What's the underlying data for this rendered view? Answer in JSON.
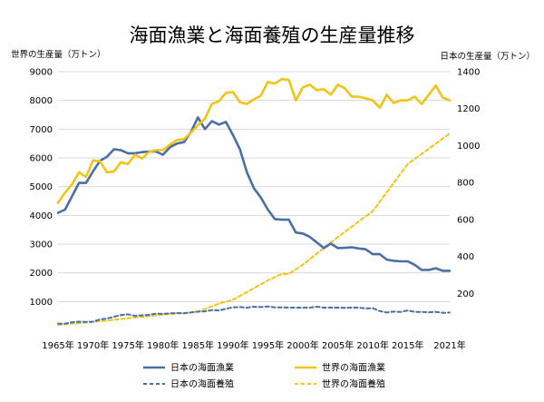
{
  "chart_data": {
    "type": "line",
    "title": "海面漁業と海面養殖の生産量推移",
    "left_axis": {
      "label": "世界の生産量（万トン）",
      "min": 0,
      "max": 9000,
      "ticks": [
        1000,
        2000,
        3000,
        4000,
        5000,
        6000,
        7000,
        8000,
        9000
      ]
    },
    "right_axis": {
      "label": "日本の生産量（万トン）",
      "min": 0,
      "max": 1400,
      "ticks": [
        200,
        400,
        600,
        800,
        1000,
        1200,
        1400
      ]
    },
    "x_axis": {
      "min": 1965,
      "max": 2021
    },
    "x_tick_labels": [
      {
        "year": 1965,
        "label": "1965年"
      },
      {
        "year": 1970,
        "label": "1970年"
      },
      {
        "year": 1975,
        "label": "1975年"
      },
      {
        "year": 1980,
        "label": "1980年"
      },
      {
        "year": 1985,
        "label": "1985年"
      },
      {
        "year": 1990,
        "label": "1990年"
      },
      {
        "year": 1995,
        "label": "1995年"
      },
      {
        "year": 2000,
        "label": "2000年"
      },
      {
        "year": 2005,
        "label": "2005年"
      },
      {
        "year": 2010,
        "label": "2010年"
      },
      {
        "year": 2015,
        "label": "2015年"
      },
      {
        "year": 2021,
        "label": "2021年"
      }
    ],
    "grid": true,
    "legend_position": "bottom",
    "series": [
      {
        "name": "日本の海面漁業",
        "axis": "left",
        "color": "#4a6fa5",
        "style": "solid",
        "x": [
          1965,
          1966,
          1967,
          1968,
          1969,
          1970,
          1971,
          1972,
          1973,
          1974,
          1975,
          1976,
          1977,
          1978,
          1979,
          1980,
          1981,
          1982,
          1983,
          1984,
          1985,
          1986,
          1987,
          1988,
          1989,
          1990,
          1991,
          1992,
          1993,
          1994,
          1995,
          1996,
          1997,
          1998,
          1999,
          2000,
          2001,
          2002,
          2003,
          2004,
          2005,
          2006,
          2007,
          2008,
          2009,
          2010,
          2011,
          2012,
          2013,
          2014,
          2015,
          2016,
          2017,
          2018,
          2019,
          2020,
          2021
        ],
        "y": [
          4090,
          4200,
          4660,
          5130,
          5130,
          5530,
          5900,
          6040,
          6300,
          6270,
          6160,
          6160,
          6200,
          6220,
          6220,
          6110,
          6370,
          6500,
          6550,
          6900,
          7410,
          7000,
          7280,
          7160,
          7250,
          6800,
          6300,
          5500,
          4950,
          4620,
          4200,
          3870,
          3850,
          3850,
          3400,
          3370,
          3250,
          3060,
          2860,
          3020,
          2860,
          2870,
          2890,
          2850,
          2820,
          2650,
          2650,
          2460,
          2420,
          2400,
          2400,
          2280,
          2100,
          2100,
          2160,
          2070,
          2070
        ]
      },
      {
        "name": "世界の海面漁業",
        "axis": "right",
        "color": "#f2c318",
        "style": "solid",
        "x": [
          1965,
          1966,
          1967,
          1968,
          1969,
          1970,
          1971,
          1972,
          1973,
          1974,
          1975,
          1976,
          1977,
          1978,
          1979,
          1980,
          1981,
          1982,
          1983,
          1984,
          1985,
          1986,
          1987,
          1988,
          1989,
          1990,
          1991,
          1992,
          1993,
          1994,
          1995,
          1996,
          1997,
          1998,
          1999,
          2000,
          2001,
          2002,
          2003,
          2004,
          2005,
          2006,
          2007,
          2008,
          2009,
          2010,
          2011,
          2012,
          2013,
          2014,
          2015,
          2016,
          2017,
          2018,
          2019,
          2020,
          2021
        ],
        "y": [
          690,
          745,
          790,
          855,
          830,
          920,
          915,
          855,
          860,
          910,
          900,
          950,
          930,
          965,
          975,
          975,
          1005,
          1030,
          1035,
          1070,
          1110,
          1145,
          1225,
          1240,
          1285,
          1290,
          1235,
          1225,
          1250,
          1270,
          1345,
          1335,
          1360,
          1355,
          1245,
          1315,
          1330,
          1300,
          1305,
          1275,
          1330,
          1310,
          1265,
          1265,
          1255,
          1245,
          1205,
          1275,
          1230,
          1245,
          1245,
          1265,
          1225,
          1275,
          1325,
          1260,
          1245
        ]
      },
      {
        "name": "日本の海面養殖",
        "axis": "left",
        "color": "#4a6fa5",
        "style": "dashed",
        "x": [
          1965,
          1966,
          1967,
          1968,
          1969,
          1970,
          1971,
          1972,
          1973,
          1974,
          1975,
          1976,
          1977,
          1978,
          1979,
          1980,
          1981,
          1982,
          1983,
          1984,
          1985,
          1986,
          1987,
          1988,
          1989,
          1990,
          1991,
          1992,
          1993,
          1994,
          1995,
          1996,
          1997,
          1998,
          1999,
          2000,
          2001,
          2002,
          2003,
          2004,
          2005,
          2006,
          2007,
          2008,
          2009,
          2010,
          2011,
          2012,
          2013,
          2014,
          2015,
          2016,
          2017,
          2018,
          2019,
          2020,
          2021
        ],
        "y": [
          230,
          230,
          280,
          300,
          290,
          300,
          380,
          410,
          470,
          530,
          560,
          500,
          520,
          540,
          580,
          570,
          590,
          600,
          590,
          620,
          650,
          660,
          700,
          690,
          750,
          800,
          810,
          790,
          820,
          810,
          830,
          800,
          800,
          790,
          790,
          790,
          790,
          820,
          790,
          790,
          790,
          780,
          790,
          790,
          760,
          770,
          670,
          620,
          650,
          640,
          690,
          640,
          640,
          630,
          640,
          610,
          620
        ]
      },
      {
        "name": "世界の海面養殖",
        "axis": "right",
        "color": "#f2c318",
        "style": "dashed",
        "x": [
          1965,
          1970,
          1975,
          1980,
          1985,
          1988,
          1990,
          1995,
          1997,
          1998,
          2000,
          2005,
          2010,
          2015,
          2021
        ],
        "y": [
          30,
          45,
          65,
          85,
          100,
          145,
          165,
          270,
          305,
          305,
          355,
          505,
          645,
          900,
          1065
        ]
      }
    ]
  }
}
